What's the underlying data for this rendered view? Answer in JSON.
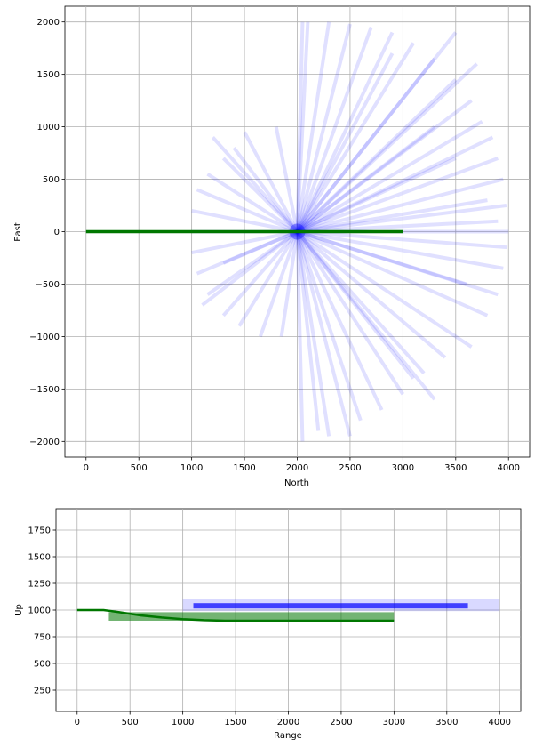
{
  "chart_data": [
    {
      "type": "line",
      "panel": "top",
      "xlabel": "North",
      "ylabel": "East",
      "xlim": [
        -200,
        4200
      ],
      "ylim": [
        -2150,
        2150
      ],
      "xticks": [
        0,
        500,
        1000,
        1500,
        2000,
        2500,
        3000,
        3500,
        4000
      ],
      "yticks": [
        -2000,
        -1500,
        -1000,
        -500,
        0,
        500,
        1000,
        1500,
        2000
      ],
      "grid": true,
      "colors": {
        "rays": "#0000ff",
        "path": "#007700"
      },
      "rays": {
        "color": "#0000ff",
        "alpha": 0.12,
        "center": [
          2000,
          0
        ],
        "endpoints": [
          [
            4000,
            0
          ],
          [
            3980,
            250
          ],
          [
            3950,
            500
          ],
          [
            3900,
            700
          ],
          [
            3850,
            900
          ],
          [
            3750,
            1050
          ],
          [
            3650,
            1250
          ],
          [
            3500,
            1450
          ],
          [
            3300,
            1650
          ],
          [
            3100,
            1800
          ],
          [
            2900,
            1900
          ],
          [
            2700,
            1950
          ],
          [
            2500,
            1980
          ],
          [
            2300,
            2000
          ],
          [
            2100,
            2000
          ],
          [
            2050,
            2000
          ],
          [
            1800,
            1000
          ],
          [
            1500,
            950
          ],
          [
            1400,
            800
          ],
          [
            1300,
            700
          ],
          [
            1150,
            550
          ],
          [
            1050,
            400
          ],
          [
            1000,
            200
          ],
          [
            1000,
            0
          ],
          [
            1000,
            -200
          ],
          [
            1050,
            -400
          ],
          [
            1150,
            -600
          ],
          [
            1300,
            -800
          ],
          [
            1450,
            -900
          ],
          [
            1650,
            -1000
          ],
          [
            1850,
            -1000
          ],
          [
            2050,
            -2000
          ],
          [
            2300,
            -1950
          ],
          [
            2500,
            -1950
          ],
          [
            2800,
            -1700
          ],
          [
            3000,
            -1550
          ],
          [
            3200,
            -1350
          ],
          [
            3400,
            -1200
          ],
          [
            3650,
            -1100
          ],
          [
            3800,
            -800
          ],
          [
            3900,
            -600
          ],
          [
            3950,
            -350
          ],
          [
            3990,
            -150
          ],
          [
            3700,
            1600
          ],
          [
            3500,
            1900
          ],
          [
            2900,
            1700
          ],
          [
            3300,
            1000
          ],
          [
            3500,
            700
          ],
          [
            1200,
            900
          ],
          [
            1100,
            -700
          ],
          [
            1300,
            -300
          ],
          [
            2200,
            -1900
          ],
          [
            2600,
            -1800
          ],
          [
            3100,
            -1400
          ],
          [
            3300,
            -1600
          ],
          [
            3600,
            -500
          ],
          [
            3800,
            300
          ],
          [
            3900,
            100
          ]
        ]
      },
      "series": [
        {
          "x": [
            0,
            3000
          ],
          "y": [
            0,
            0
          ]
        }
      ]
    },
    {
      "type": "line",
      "panel": "bottom",
      "xlabel": "Range",
      "ylabel": "Up",
      "xlim": [
        -200,
        4200
      ],
      "ylim": [
        50,
        1950
      ],
      "xticks": [
        0,
        500,
        1000,
        1500,
        2000,
        2500,
        3000,
        3500,
        4000
      ],
      "yticks": [
        250,
        500,
        750,
        1000,
        1250,
        1500,
        1750
      ],
      "grid": true,
      "colors": {
        "band": "#0000ff",
        "descent": "#007700"
      },
      "blue_band": {
        "x": [
          1000,
          4000
        ],
        "y": [
          990,
          1100
        ],
        "core_y": 1040
      },
      "green_band": {
        "x": [
          300,
          3000
        ],
        "y": [
          900,
          980
        ]
      },
      "series": [
        {
          "x": [
            0,
            250,
            400,
            600,
            800,
            1000,
            1200,
            1400,
            3000
          ],
          "y": [
            1000,
            1000,
            980,
            950,
            930,
            915,
            905,
            900,
            900
          ]
        }
      ]
    }
  ]
}
